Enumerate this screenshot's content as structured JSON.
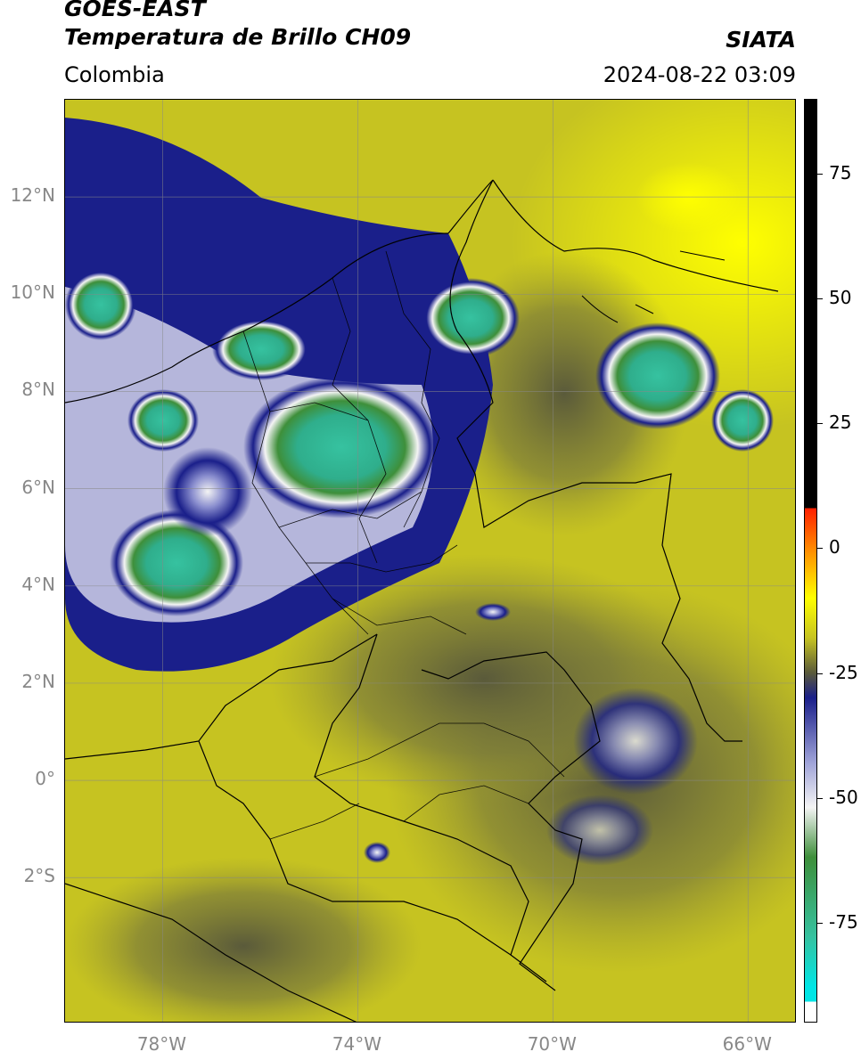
{
  "header": {
    "line1": "GOES-EAST",
    "line2": "Temperatura de Brillo CH09",
    "region": "Colombia",
    "org": "SIATA",
    "datetime": "2024-08-22 03:09"
  },
  "map": {
    "lon_range": [
      -80,
      -65
    ],
    "lat_range": [
      -5,
      14
    ],
    "y_ticks": [
      {
        "lat": 12,
        "label": "12°N"
      },
      {
        "lat": 10,
        "label": "10°N"
      },
      {
        "lat": 8,
        "label": "8°N"
      },
      {
        "lat": 6,
        "label": "6°N"
      },
      {
        "lat": 4,
        "label": "4°N"
      },
      {
        "lat": 2,
        "label": "2°N"
      },
      {
        "lat": 0,
        "label": "0°"
      },
      {
        "lat": -2,
        "label": "2°S"
      }
    ],
    "x_ticks": [
      {
        "lon": -78,
        "label": "78°W"
      },
      {
        "lon": -74,
        "label": "74°W"
      },
      {
        "lon": -70,
        "label": "70°W"
      },
      {
        "lon": -66,
        "label": "66°W"
      }
    ]
  },
  "colorbar": {
    "range": [
      -95,
      90
    ],
    "ticks": [
      {
        "value": 75,
        "label": "75"
      },
      {
        "value": 50,
        "label": "50"
      },
      {
        "value": 25,
        "label": "25"
      },
      {
        "value": 0,
        "label": "0"
      },
      {
        "value": -25,
        "label": "-25"
      },
      {
        "value": -50,
        "label": "-50"
      },
      {
        "value": -75,
        "label": "-75"
      }
    ],
    "colors": {
      "base_yellow": "#c6c321",
      "bright_yellow": "#ffff00",
      "dark_olive": "#5a5a3a",
      "navy": "#1a1f8a",
      "white": "#f4f4f4",
      "green": "#3e8f3a",
      "teal": "#36c2a0",
      "red": "#ff1f00",
      "black": "#000000"
    }
  }
}
